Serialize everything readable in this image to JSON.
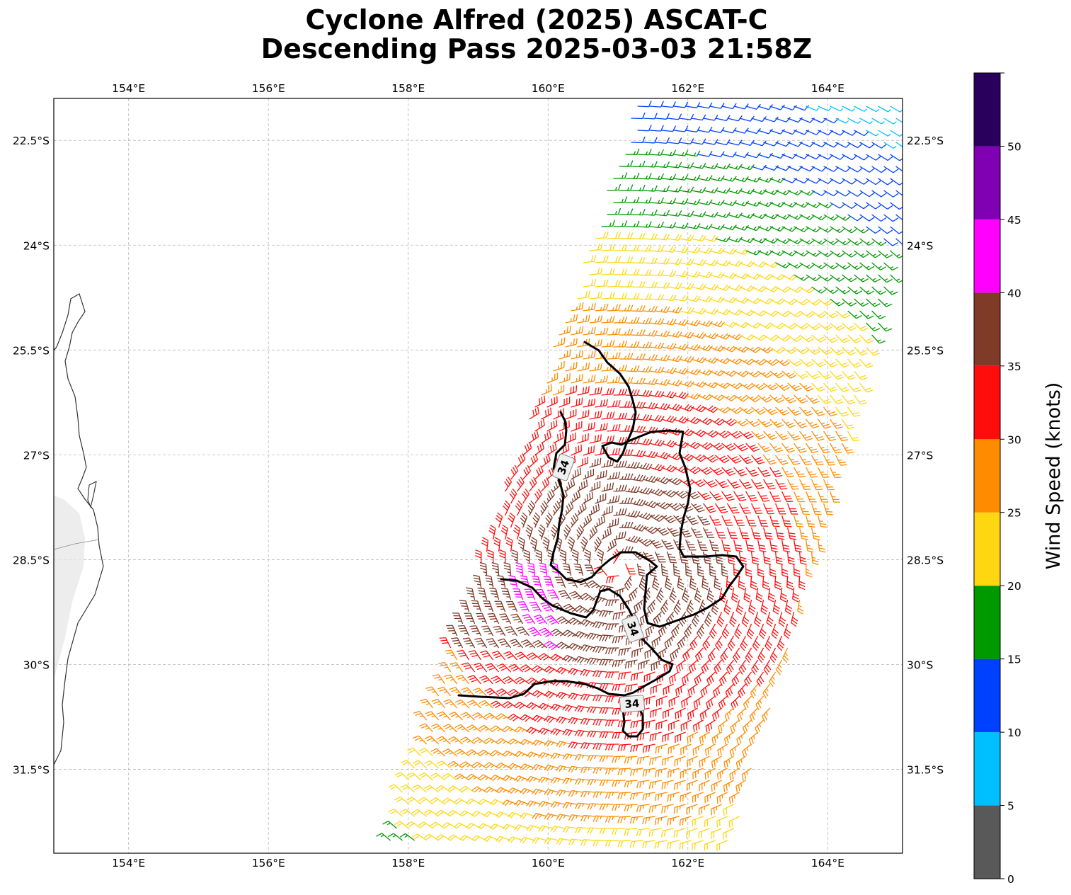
{
  "title": {
    "line1": "Cyclone Alfred (2025) ASCAT-C",
    "line2": "Descending Pass 2025-03-03 21:58Z"
  },
  "map": {
    "lon_range": [
      152.93,
      165.07
    ],
    "lat_range": [
      -32.7,
      -21.9
    ],
    "lon_ticks": [
      "154°E",
      "156°E",
      "158°E",
      "160°E",
      "162°E",
      "164°E"
    ],
    "lon_tick_values": [
      154,
      156,
      158,
      160,
      162,
      164
    ],
    "lat_ticks": [
      "22.5°S",
      "24°S",
      "25.5°S",
      "27°S",
      "28.5°S",
      "30°S",
      "31.5°S"
    ],
    "lat_tick_values": [
      -22.5,
      -24,
      -25.5,
      -27,
      -28.5,
      -30,
      -31.5
    ],
    "gridlines": true,
    "contour_label": "34",
    "contour_level_kt": 34
  },
  "colorbar": {
    "label": "Wind Speed (knots)",
    "tick_labels": [
      "0",
      "5",
      "10",
      "15",
      "20",
      "25",
      "30",
      "35",
      "40",
      "45",
      "50"
    ],
    "bins": [
      {
        "from": 0,
        "to": 5,
        "color": "#595959"
      },
      {
        "from": 5,
        "to": 10,
        "color": "#00bfff"
      },
      {
        "from": 10,
        "to": 15,
        "color": "#0040ff"
      },
      {
        "from": 15,
        "to": 20,
        "color": "#009900"
      },
      {
        "from": 20,
        "to": 25,
        "color": "#ffd711"
      },
      {
        "from": 25,
        "to": 30,
        "color": "#ff8c00"
      },
      {
        "from": 30,
        "to": 35,
        "color": "#ff0d0d"
      },
      {
        "from": 35,
        "to": 40,
        "color": "#7f3a28"
      },
      {
        "from": 40,
        "to": 45,
        "color": "#ff00ff"
      },
      {
        "from": 45,
        "to": 50,
        "color": "#8000b3"
      },
      {
        "from": 50,
        "to": 55,
        "color": "#2a005e"
      }
    ]
  }
}
